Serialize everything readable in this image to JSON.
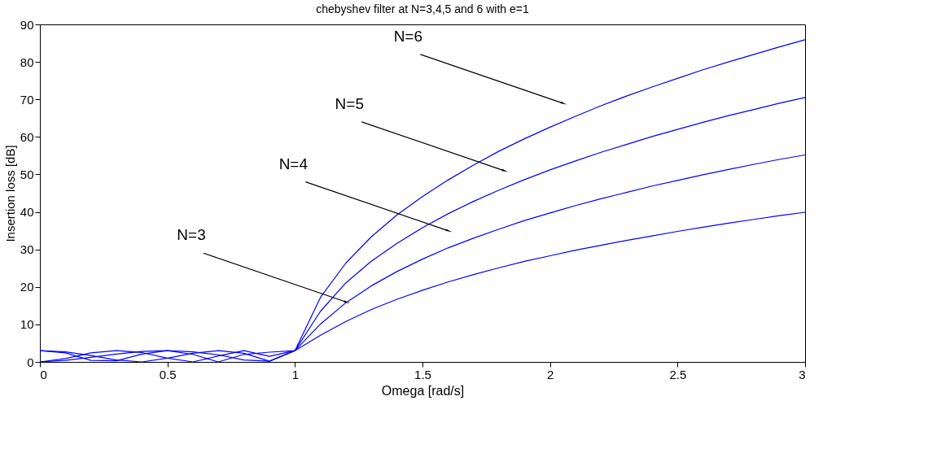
{
  "chart_data": {
    "type": "line",
    "title": "chebyshev filter at N=3,4,5 and 6 with e=1",
    "xlabel": "Omega [rad/s]",
    "ylabel": "Insertion loss [dB]",
    "x": [
      0,
      0.1,
      0.2,
      0.3,
      0.4,
      0.5,
      0.6,
      0.7,
      0.8,
      0.9,
      1.0,
      1.1,
      1.2,
      1.3,
      1.4,
      1.5,
      1.6,
      1.7,
      1.8,
      1.9,
      2.0,
      2.1,
      2.2,
      2.3,
      2.4,
      2.5,
      2.6,
      2.7,
      2.8,
      2.9,
      3.0
    ],
    "series": [
      {
        "color": "#0000ff",
        "values": [
          0,
          0.4,
          1.2,
          2.1,
          2.8,
          3.0,
          2.7,
          1.9,
          0.5,
          0.2,
          3.0,
          7.1,
          10.8,
          14.0,
          16.7,
          19.1,
          21.3,
          23.3,
          25.1,
          26.8,
          28.3,
          29.8,
          31.1,
          32.4,
          33.6,
          34.8,
          35.9,
          37.0,
          38.0,
          39.0,
          39.9
        ]
      },
      {
        "color": "#0000ff",
        "values": [
          3.0,
          2.7,
          1.7,
          0.5,
          0.0,
          1.0,
          2.3,
          3.0,
          2.3,
          0.2,
          3.0,
          10.1,
          15.8,
          20.3,
          24.1,
          27.4,
          30.4,
          33.0,
          35.4,
          37.7,
          39.7,
          41.7,
          43.5,
          45.2,
          46.9,
          48.4,
          49.9,
          51.3,
          52.7,
          54.0,
          55.2
        ]
      },
      {
        "color": "#0000ff",
        "values": [
          0,
          0.9,
          2.4,
          3.0,
          2.5,
          1.0,
          0.0,
          1.6,
          3.0,
          1.5,
          3.0,
          13.5,
          21.1,
          26.9,
          31.6,
          35.8,
          39.5,
          42.8,
          45.8,
          48.6,
          51.2,
          53.6,
          55.9,
          58.0,
          60.1,
          62.0,
          63.9,
          65.7,
          67.3,
          69.0,
          70.5
        ]
      },
      {
        "color": "#0000ff",
        "values": [
          3.0,
          2.4,
          0.4,
          0.3,
          2.1,
          3.0,
          2.0,
          0.0,
          2.0,
          2.6,
          3.0,
          17.2,
          26.4,
          33.4,
          39.2,
          44.1,
          48.5,
          52.5,
          56.2,
          59.5,
          62.6,
          65.5,
          68.3,
          70.9,
          73.3,
          75.6,
          77.9,
          80.0,
          82.0,
          84.0,
          85.9
        ]
      }
    ],
    "annotations": [
      {
        "text": "N=3",
        "x": 1.2,
        "y": 16
      },
      {
        "text": "N=4",
        "x": 1.6,
        "y": 35
      },
      {
        "text": "N=5",
        "x": 1.82,
        "y": 51
      },
      {
        "text": "N=6",
        "x": 2.05,
        "y": 69
      }
    ],
    "xlim": [
      0,
      3
    ],
    "xticks": [
      0,
      0.5,
      1,
      1.5,
      2,
      2.5,
      3
    ],
    "ylim": [
      0,
      90
    ],
    "yticks": [
      0,
      10,
      20,
      30,
      40,
      50,
      60,
      70,
      80,
      90
    ],
    "grid": false,
    "legend": false,
    "marker": "none",
    "line_style": "solid"
  }
}
